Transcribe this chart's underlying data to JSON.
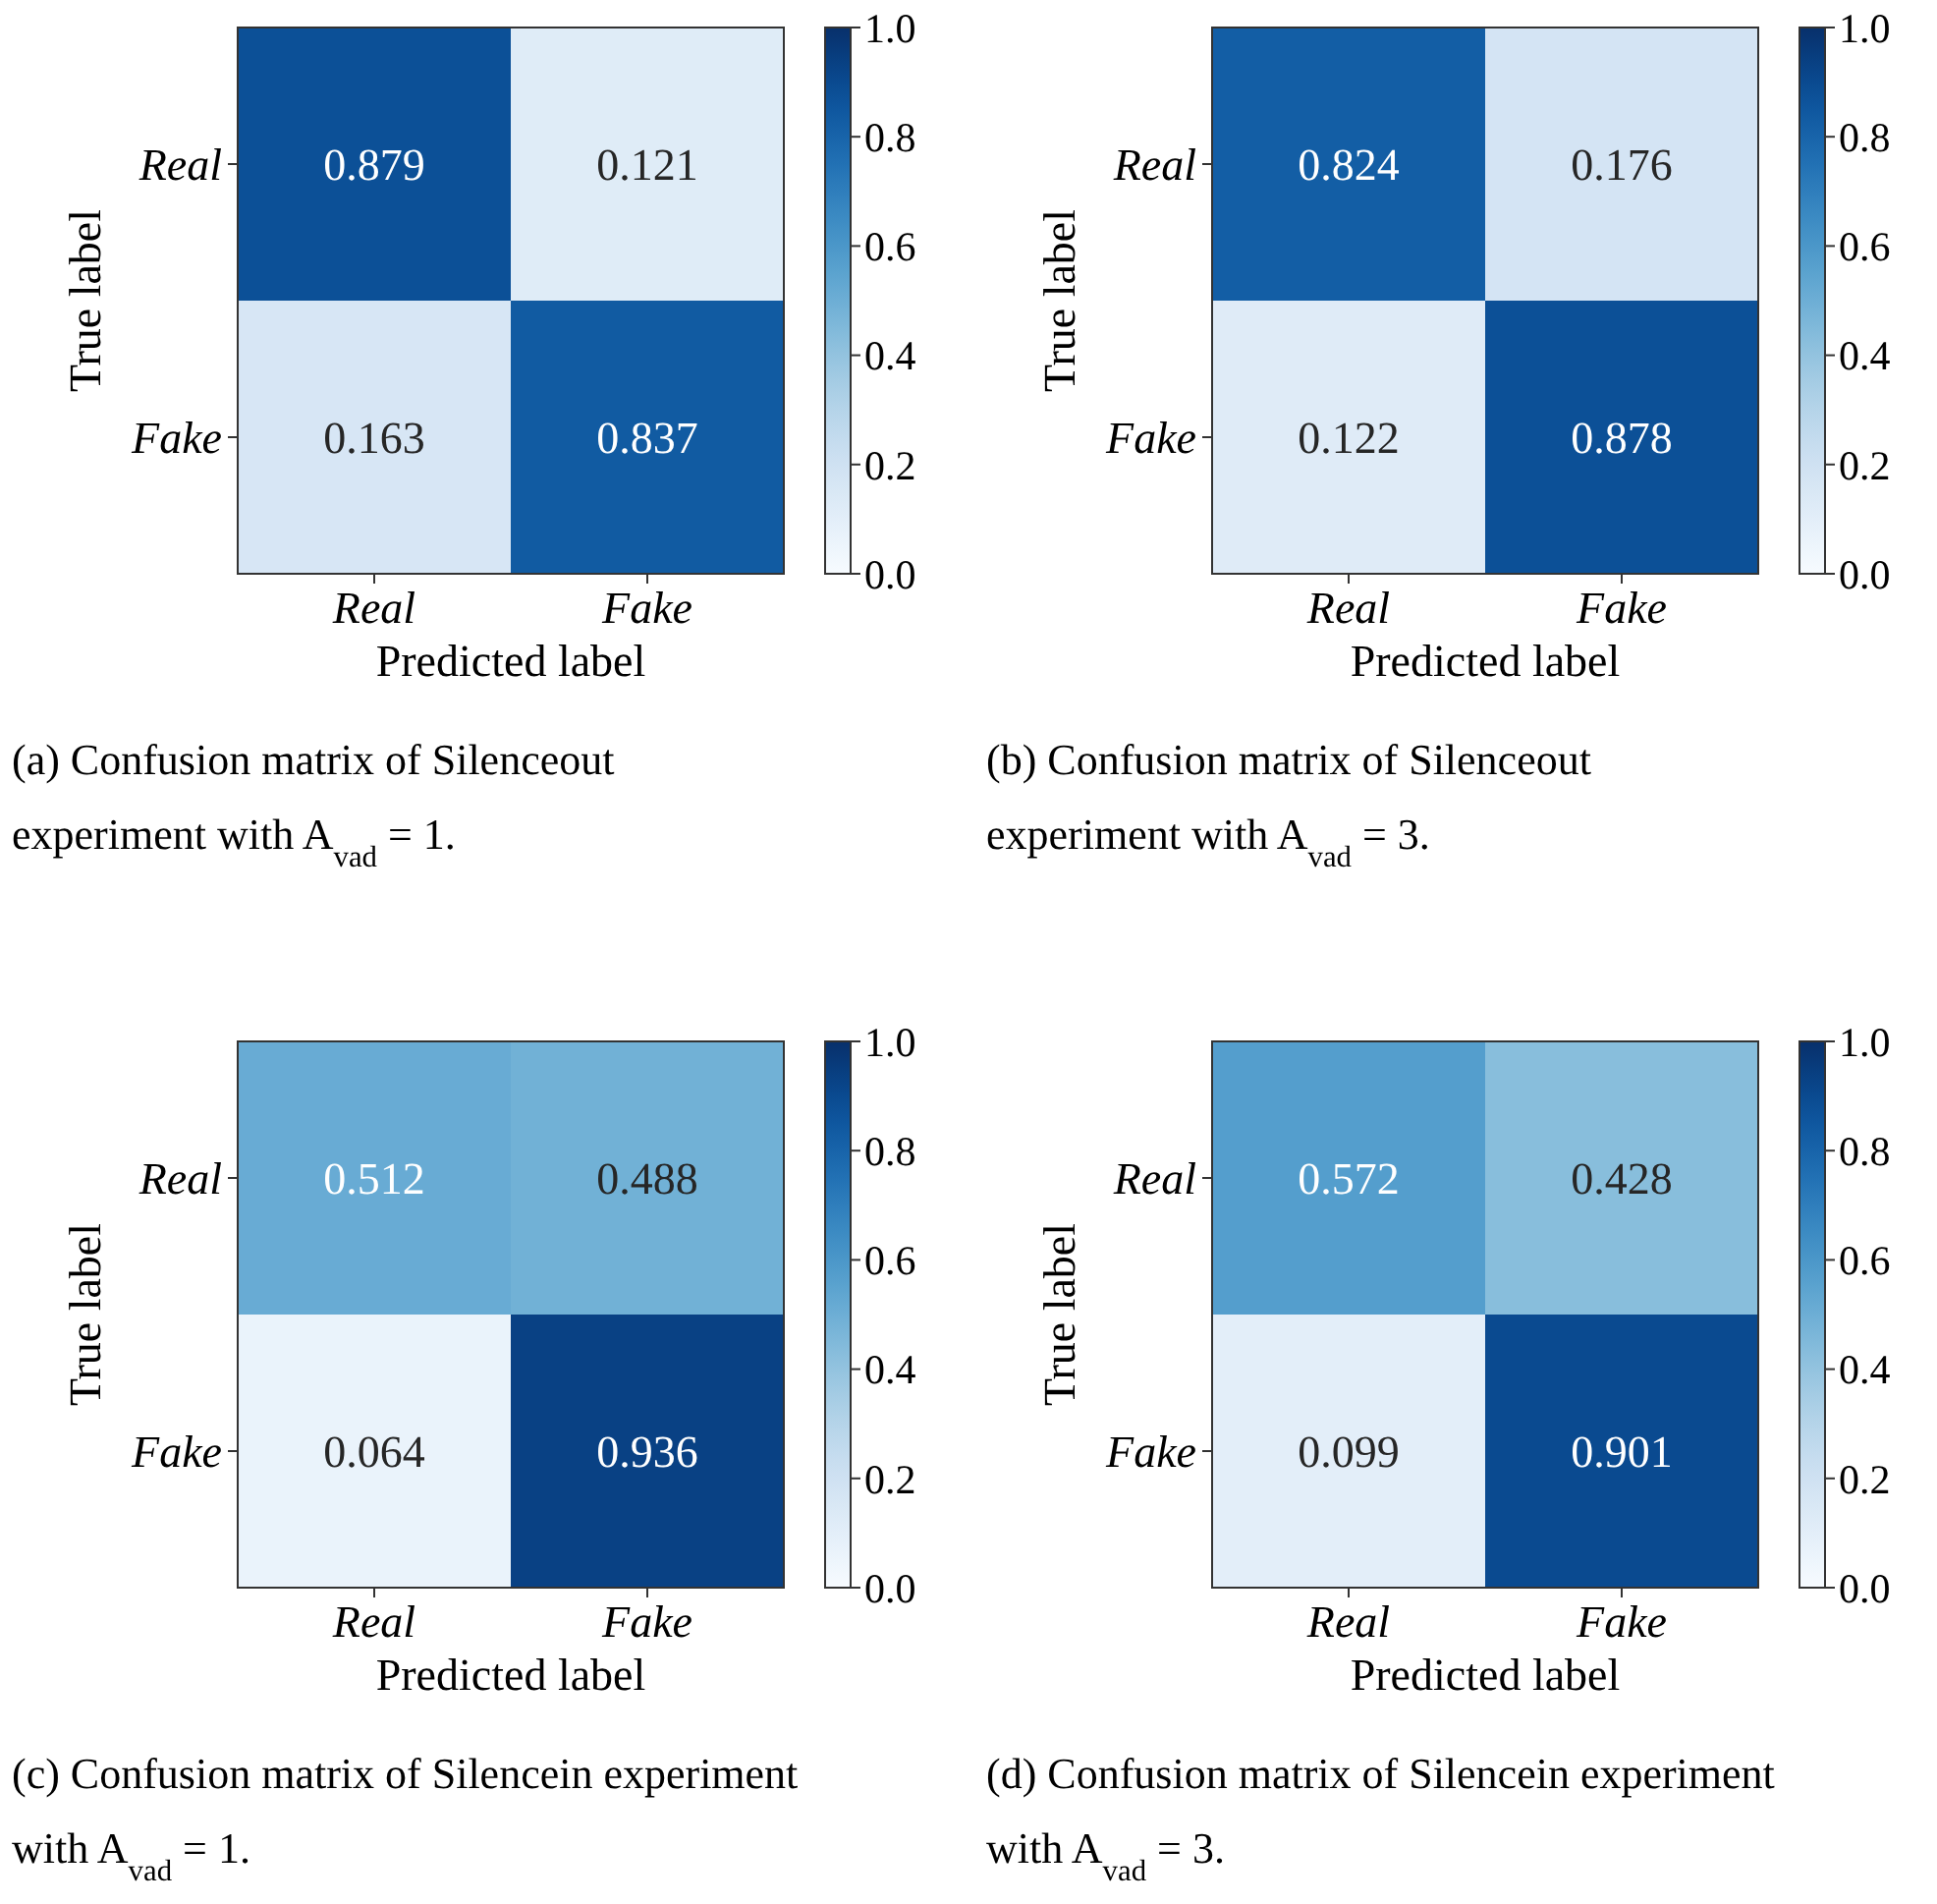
{
  "chart_data": [
    {
      "type": "heatmap",
      "xlabel": "Predicted label",
      "ylabel": "True label",
      "categories": [
        "Real",
        "Fake"
      ],
      "y_categories": [
        "Real",
        "Fake"
      ],
      "cells": [
        [
          0.879,
          0.121
        ],
        [
          0.163,
          0.837
        ]
      ],
      "data_labels": true,
      "clim": [
        0,
        1
      ],
      "cticks": [
        {
          "value": 0,
          "label": "0.0"
        },
        {
          "value": 0.2,
          "label": "0.2"
        },
        {
          "value": 0.4,
          "label": "0.4"
        },
        {
          "value": 0.6,
          "label": "0.6"
        },
        {
          "value": 0.8,
          "label": "0.8"
        },
        {
          "value": 1,
          "label": "1.0"
        }
      ],
      "annotations": [
        "(a) Confusion matrix of Silenceout experiment with A$_{vad}$ = 1."
      ]
    },
    {
      "type": "heatmap",
      "xlabel": "Predicted label",
      "ylabel": "True label",
      "categories": [
        "Real",
        "Fake"
      ],
      "y_categories": [
        "Real",
        "Fake"
      ],
      "cells": [
        [
          0.824,
          0.176
        ],
        [
          0.122,
          0.878
        ]
      ],
      "data_labels": true,
      "clim": [
        0,
        1
      ],
      "cticks": [
        {
          "value": 0,
          "label": "0.0"
        },
        {
          "value": 0.2,
          "label": "0.2"
        },
        {
          "value": 0.4,
          "label": "0.4"
        },
        {
          "value": 0.6,
          "label": "0.6"
        },
        {
          "value": 0.8,
          "label": "0.8"
        },
        {
          "value": 1,
          "label": "1.0"
        }
      ],
      "annotations": [
        "(b) Confusion matrix of Silenceout experiment with A$_{vad}$ = 3."
      ]
    },
    {
      "type": "heatmap",
      "xlabel": "Predicted label",
      "ylabel": "True label",
      "categories": [
        "Real",
        "Fake"
      ],
      "y_categories": [
        "Real",
        "Fake"
      ],
      "cells": [
        [
          0.512,
          0.488
        ],
        [
          0.064,
          0.936
        ]
      ],
      "data_labels": true,
      "clim": [
        0,
        1
      ],
      "cticks": [
        {
          "value": 0,
          "label": "0.0"
        },
        {
          "value": 0.2,
          "label": "0.2"
        },
        {
          "value": 0.4,
          "label": "0.4"
        },
        {
          "value": 0.6,
          "label": "0.6"
        },
        {
          "value": 0.8,
          "label": "0.8"
        },
        {
          "value": 1,
          "label": "1.0"
        }
      ],
      "annotations": [
        "(c) Confusion matrix of Silencein experiment with A$_{vad}$ = 1."
      ]
    },
    {
      "type": "heatmap",
      "xlabel": "Predicted label",
      "ylabel": "True label",
      "categories": [
        "Real",
        "Fake"
      ],
      "y_categories": [
        "Real",
        "Fake"
      ],
      "cells": [
        [
          0.572,
          0.428
        ],
        [
          0.099,
          0.901
        ]
      ],
      "data_labels": true,
      "clim": [
        0,
        1
      ],
      "cticks": [
        {
          "value": 0,
          "label": "0.0"
        },
        {
          "value": 0.2,
          "label": "0.2"
        },
        {
          "value": 0.4,
          "label": "0.4"
        },
        {
          "value": 0.6,
          "label": "0.6"
        },
        {
          "value": 0.8,
          "label": "0.8"
        },
        {
          "value": 1,
          "label": "1.0"
        }
      ],
      "annotations": [
        "(d) Confusion matrix of Silencein experiment with A$_{vad}$ = 3."
      ]
    }
  ]
}
